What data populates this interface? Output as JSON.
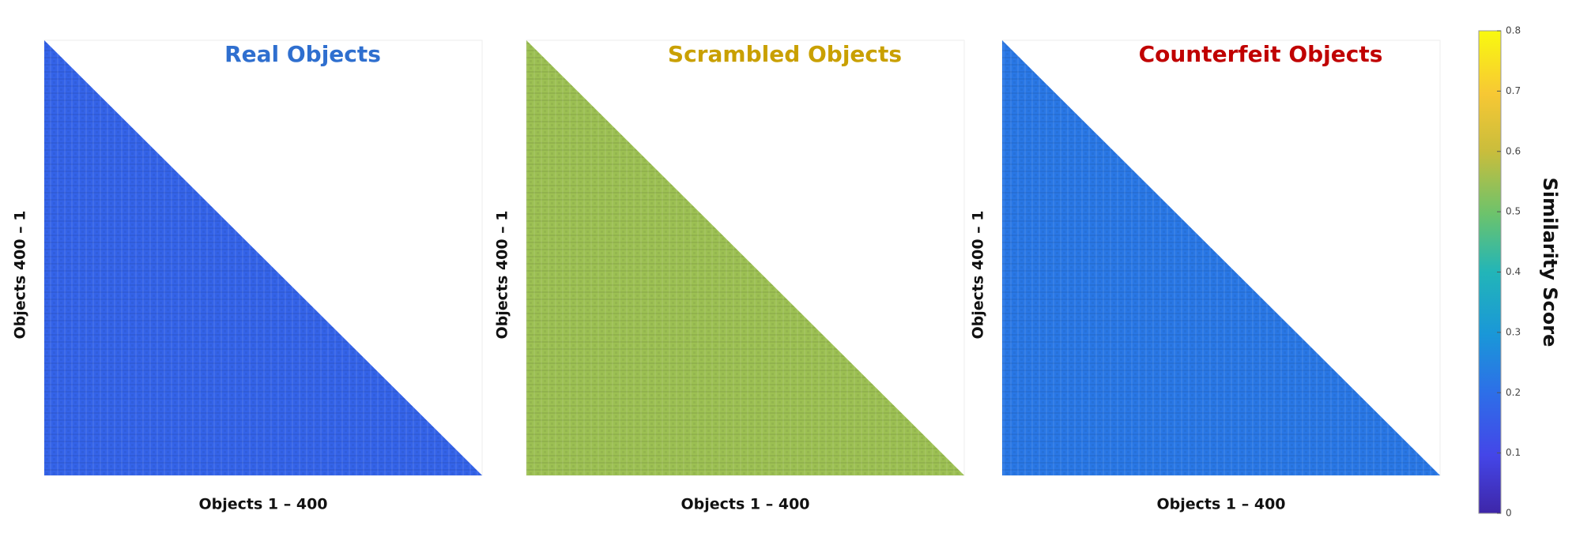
{
  "chart_data": [
    {
      "type": "heatmap",
      "title": "Real Objects",
      "title_color": "#2f6fcf",
      "xlabel": "Objects 1 – 400",
      "ylabel": "Objects 400 – 1",
      "value": 0.17
    },
    {
      "type": "heatmap",
      "title": "Scrambled Objects",
      "title_color": "#c9a000",
      "xlabel": "Objects 1 – 400",
      "ylabel": "Objects 400 – 1",
      "value": 0.55
    },
    {
      "type": "heatmap",
      "title": "Counterfeit Objects",
      "title_color": "#c00000",
      "xlabel": "Objects 1 – 400",
      "ylabel": "Objects 400 – 1",
      "value": 0.22
    },
    {
      "type": "colorbar",
      "label": "Similarity Score",
      "clim": [
        0,
        0.8
      ],
      "ticks": [
        0,
        0.1,
        0.2,
        0.3,
        0.4,
        0.5,
        0.6,
        0.7,
        0.8
      ]
    }
  ]
}
